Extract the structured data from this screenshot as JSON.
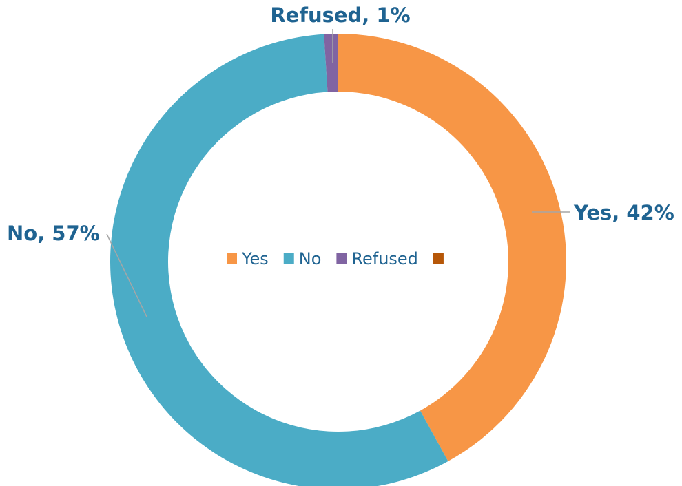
{
  "chart_data": {
    "type": "donut",
    "categories": [
      "Yes",
      "No",
      "Refused",
      null
    ],
    "values": [
      42,
      57,
      1,
      0
    ],
    "value_labels": [
      "Yes, 42%",
      "No, 57%",
      "Refused, 1%",
      null
    ],
    "colors": [
      "#f79646",
      "#4bacc6",
      "#8064a2",
      "#b65708"
    ],
    "legend": "center"
  }
}
